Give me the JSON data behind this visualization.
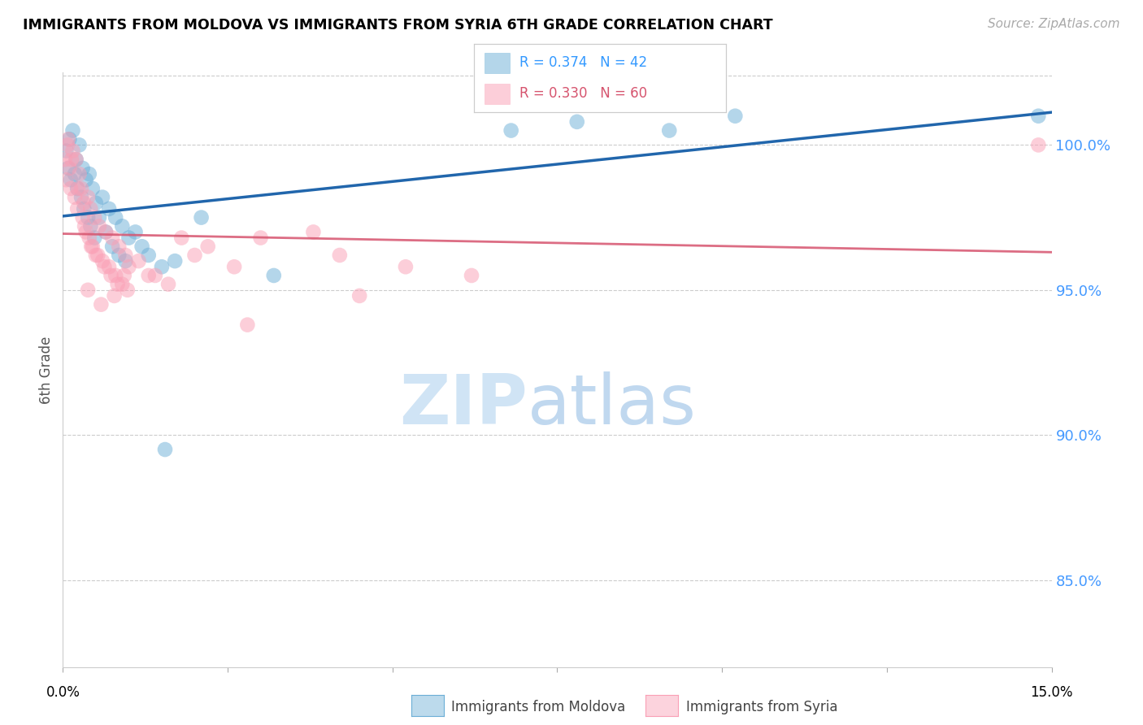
{
  "title": "IMMIGRANTS FROM MOLDOVA VS IMMIGRANTS FROM SYRIA 6TH GRADE CORRELATION CHART",
  "source": "Source: ZipAtlas.com",
  "ylabel": "6th Grade",
  "xlim": [
    0.0,
    15.0
  ],
  "ylim": [
    82.0,
    102.5
  ],
  "yticks": [
    85.0,
    90.0,
    95.0,
    100.0
  ],
  "ytick_labels": [
    "85.0%",
    "90.0%",
    "95.0%",
    "100.0%"
  ],
  "xticks": [
    0.0,
    2.5,
    5.0,
    7.5,
    10.0,
    12.5,
    15.0
  ],
  "moldova_color": "#6baed6",
  "syria_color": "#fa9fb5",
  "moldova_line_color": "#2166ac",
  "syria_line_color": "#d6546e",
  "legend_R_moldova": "R = 0.374",
  "legend_N_moldova": "N = 42",
  "legend_R_syria": "R = 0.330",
  "legend_N_syria": "N = 60",
  "moldova_x": [
    0.05,
    0.08,
    0.1,
    0.12,
    0.15,
    0.18,
    0.2,
    0.22,
    0.25,
    0.28,
    0.3,
    0.32,
    0.35,
    0.38,
    0.4,
    0.42,
    0.45,
    0.48,
    0.5,
    0.55,
    0.6,
    0.65,
    0.7,
    0.75,
    0.8,
    0.85,
    0.9,
    0.95,
    1.0,
    1.1,
    1.2,
    1.3,
    1.5,
    1.7,
    2.1,
    3.2,
    7.8,
    9.2,
    10.2,
    14.8,
    1.55,
    6.8
  ],
  "moldova_y": [
    99.8,
    99.2,
    100.2,
    98.8,
    100.5,
    99.0,
    99.5,
    98.5,
    100.0,
    98.2,
    99.2,
    97.8,
    98.8,
    97.5,
    99.0,
    97.2,
    98.5,
    96.8,
    98.0,
    97.5,
    98.2,
    97.0,
    97.8,
    96.5,
    97.5,
    96.2,
    97.2,
    96.0,
    96.8,
    97.0,
    96.5,
    96.2,
    95.8,
    96.0,
    97.5,
    95.5,
    100.8,
    100.5,
    101.0,
    101.0,
    89.5,
    100.5
  ],
  "syria_x": [
    0.03,
    0.05,
    0.07,
    0.1,
    0.12,
    0.15,
    0.18,
    0.2,
    0.22,
    0.25,
    0.28,
    0.3,
    0.32,
    0.35,
    0.38,
    0.4,
    0.42,
    0.45,
    0.48,
    0.5,
    0.55,
    0.6,
    0.65,
    0.7,
    0.75,
    0.8,
    0.85,
    0.9,
    0.95,
    1.0,
    0.08,
    0.13,
    0.23,
    0.33,
    0.43,
    0.53,
    0.63,
    0.73,
    0.83,
    0.93,
    1.15,
    1.4,
    1.8,
    2.2,
    2.6,
    3.8,
    4.2,
    5.2,
    6.2,
    0.38,
    0.58,
    0.78,
    0.98,
    1.6,
    2.0,
    3.0,
    1.3,
    2.8,
    4.5,
    14.8
  ],
  "syria_y": [
    99.5,
    98.8,
    100.0,
    99.2,
    98.5,
    99.8,
    98.2,
    99.5,
    97.8,
    99.0,
    98.5,
    97.5,
    98.0,
    97.0,
    98.2,
    96.8,
    97.8,
    96.5,
    97.5,
    96.2,
    97.2,
    96.0,
    97.0,
    95.8,
    96.8,
    95.5,
    96.5,
    95.2,
    96.2,
    95.8,
    100.2,
    99.5,
    98.5,
    97.2,
    96.5,
    96.2,
    95.8,
    95.5,
    95.2,
    95.5,
    96.0,
    95.5,
    96.8,
    96.5,
    95.8,
    97.0,
    96.2,
    95.8,
    95.5,
    95.0,
    94.5,
    94.8,
    95.0,
    95.2,
    96.2,
    96.8,
    95.5,
    93.8,
    94.8,
    100.0
  ]
}
